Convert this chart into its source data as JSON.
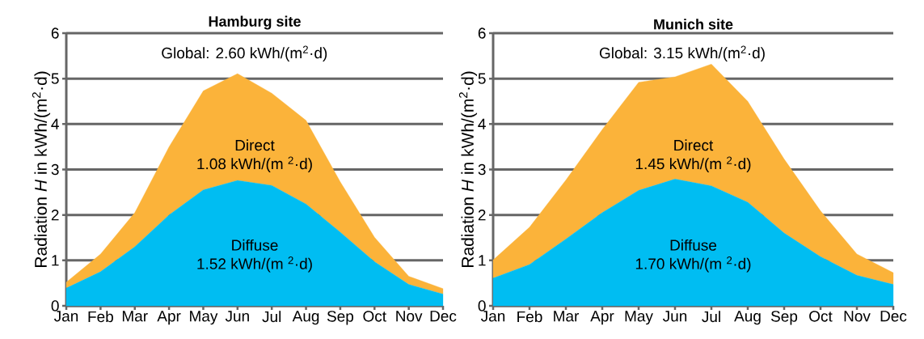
{
  "chart_data": [
    {
      "type": "area",
      "title": "Hamburg site",
      "ylabel": "Radiation *H* in kWh/(m$^{2}$·d)",
      "categories": [
        "Jan",
        "Feb",
        "Mar",
        "Apr",
        "May",
        "Jun",
        "Jul",
        "Aug",
        "Sep",
        "Oct",
        "Nov",
        "Dec"
      ],
      "stacked": true,
      "ylim": [
        0,
        6
      ],
      "yticks": [
        0,
        1,
        2,
        3,
        4,
        5,
        6
      ],
      "grid": "y",
      "series": [
        {
          "name": "Diffuse",
          "color": "#00bdf2",
          "values": [
            0.39,
            0.75,
            1.3,
            2.0,
            2.55,
            2.76,
            2.65,
            2.24,
            1.62,
            0.97,
            0.47,
            0.26
          ]
        },
        {
          "name": "Direct",
          "color": "#fbb33a",
          "values": [
            0.13,
            0.39,
            0.75,
            1.5,
            2.18,
            2.35,
            2.03,
            1.84,
            1.11,
            0.54,
            0.18,
            0.12
          ]
        }
      ],
      "annotations": [
        "Global: 2.60 kWh/(m$^{2}$·d)",
        "1.52 kWh/(m $^{2}$·d)",
        "1.08 kWh/(m $^{2}$·d)"
      ]
    },
    {
      "type": "area",
      "title": "Munich site",
      "ylabel": "Radiation *H* in kWh/(m$^{2}$·d)",
      "categories": [
        "Jan",
        "Feb",
        "Mar",
        "Apr",
        "May",
        "Jun",
        "Jul",
        "Aug",
        "Sep",
        "Oct",
        "Nov",
        "Dec"
      ],
      "stacked": true,
      "ylim": [
        0,
        6
      ],
      "yticks": [
        0,
        1,
        2,
        3,
        4,
        5,
        6
      ],
      "grid": "y",
      "series": [
        {
          "name": "Diffuse",
          "color": "#00bdf2",
          "values": [
            0.61,
            0.91,
            1.47,
            2.05,
            2.54,
            2.79,
            2.64,
            2.28,
            1.6,
            1.08,
            0.67,
            0.47
          ]
        },
        {
          "name": "Direct",
          "color": "#fbb33a",
          "values": [
            0.4,
            0.82,
            1.3,
            1.83,
            2.38,
            2.25,
            2.68,
            2.22,
            1.63,
            1.01,
            0.47,
            0.26
          ]
        }
      ],
      "annotations": [
        "Global: 3.15 kWh/(m$^{2}$·d)",
        "1.70 kWh/(m $^{2}$·d)",
        "1.45 kWh/(m $^{2}$·d)"
      ]
    }
  ]
}
